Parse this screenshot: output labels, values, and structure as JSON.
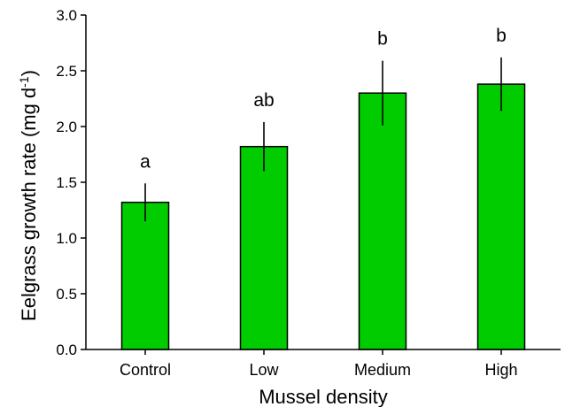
{
  "chart_data": {
    "type": "bar",
    "categories": [
      "Control",
      "Low",
      "Medium",
      "High"
    ],
    "values": [
      1.32,
      1.82,
      2.3,
      2.38
    ],
    "error": [
      0.17,
      0.22,
      0.29,
      0.24
    ],
    "significance": [
      "a",
      "ab",
      "b",
      "b"
    ],
    "xlabel": "Mussel density",
    "ylabel_main": "Eelgrass growth rate (mg d",
    "ylabel_sup": "-1",
    "ylabel_end": ")",
    "ylim": [
      0,
      3.0
    ],
    "yticks": [
      "0.0",
      "0.5",
      "1.0",
      "1.5",
      "2.0",
      "2.5",
      "3.0"
    ],
    "grid": false,
    "bar_color": "#00cc00"
  }
}
